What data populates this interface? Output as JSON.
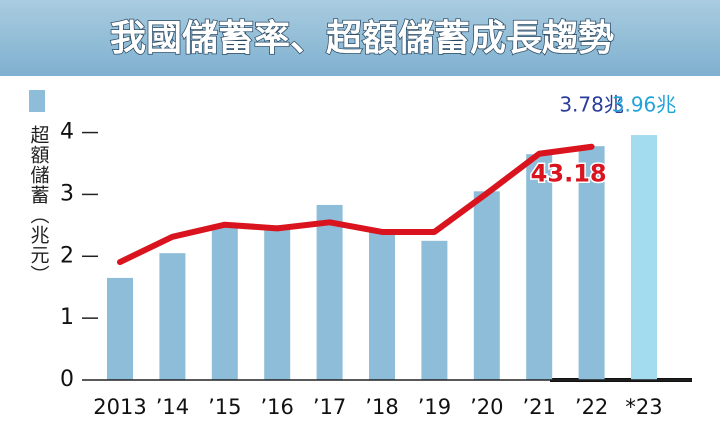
{
  "chart_data": {
    "type": "bar",
    "title": "我國儲蓄率、超額儲蓄成長趨勢",
    "y_label": "超額儲蓄（兆元）",
    "categories": [
      "2013",
      "’14",
      "’15",
      "’16",
      "’17",
      "’18",
      "’19",
      "’20",
      "’21",
      "’22",
      "*23"
    ],
    "ylim": [
      0,
      4.3
    ],
    "yticks": [
      0,
      1,
      2,
      3,
      4
    ],
    "y2lim": [
      23.8,
      45.9
    ],
    "series": [
      {
        "type": "bar",
        "colors": [
          "#8dbdd8",
          "#8dbdd8",
          "#8dbdd8",
          "#8dbdd8",
          "#8dbdd8",
          "#8dbdd8",
          "#8dbdd8",
          "#8dbdd8",
          "#8dbdd8",
          "#8dbdd8",
          "#a3dcef"
        ],
        "values": [
          1.65,
          2.05,
          2.5,
          2.5,
          2.83,
          2.4,
          2.25,
          3.05,
          3.65,
          3.78,
          3.96
        ],
        "value_labels": [
          null,
          null,
          null,
          null,
          null,
          null,
          null,
          null,
          null,
          "3.78兆",
          "3.96兆"
        ],
        "label_colors": [
          null,
          null,
          null,
          null,
          null,
          null,
          null,
          null,
          null,
          "#2b3d9c",
          "#22a3d8"
        ]
      },
      {
        "type": "line",
        "axis": "y2",
        "color": "#d9141f",
        "values": [
          33.6,
          35.7,
          36.7,
          36.4,
          36.9,
          36.1,
          36.1,
          39.3,
          42.6,
          43.18,
          null
        ],
        "value_labels": [
          null,
          null,
          null,
          null,
          null,
          null,
          null,
          null,
          null,
          "43.18",
          null
        ]
      }
    ]
  }
}
